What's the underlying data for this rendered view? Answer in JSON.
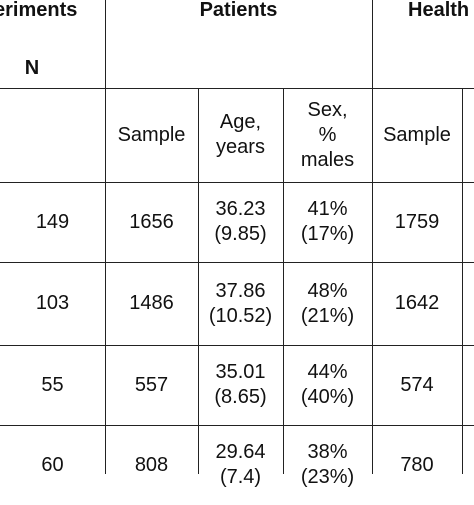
{
  "header": {
    "experiments": "eriments",
    "n": "N",
    "patients": "Patients",
    "healthy": "Health"
  },
  "subheader": [
    [
      "Sample"
    ],
    [
      "Age,",
      "years"
    ],
    [
      "Sex,",
      "%",
      "males"
    ],
    [
      "Sample"
    ]
  ],
  "table": {
    "rows": [
      [
        [
          "149"
        ],
        [
          "1656"
        ],
        [
          "36.23",
          "(9.85)"
        ],
        [
          "41%",
          "(17%)"
        ],
        [
          "1759"
        ]
      ],
      [
        [
          "103"
        ],
        [
          "1486"
        ],
        [
          "37.86",
          "(10.52)"
        ],
        [
          "48%",
          "(21%)"
        ],
        [
          "1642"
        ]
      ],
      [
        [
          "55"
        ],
        [
          "557"
        ],
        [
          "35.01",
          "(8.65)"
        ],
        [
          "44%",
          "(40%)"
        ],
        [
          "574"
        ]
      ],
      [
        [
          "60"
        ],
        [
          "808"
        ],
        [
          "29.64",
          "(7.4)"
        ],
        [
          "38%",
          "(23%)"
        ],
        [
          "780"
        ]
      ]
    ]
  }
}
